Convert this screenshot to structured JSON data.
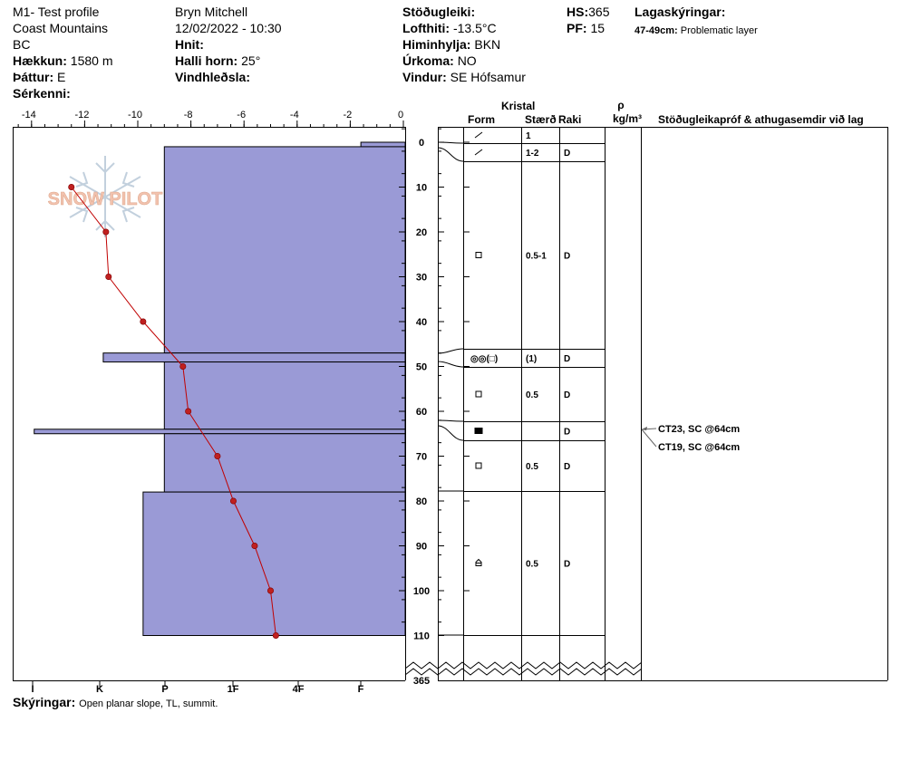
{
  "header": {
    "profile_name": "M1- Test profile",
    "range": "Coast Mountains",
    "region": "BC",
    "elevation_label": "Hækkun:",
    "elevation_value": "1580 m",
    "aspect_label": "Þáttur:",
    "aspect_value": "E",
    "specifics_label": "Sérkenni:",
    "observer": "Bryn Mitchell",
    "datetime": "12/02/2022 - 10:30",
    "location_label": "Hnit:",
    "slope_label": "Halli horn:",
    "slope_value": "25°",
    "wind_loading_label": "Vindhleðsla:",
    "stability_label": "Stöðugleiki:",
    "air_temp_label": "Lofthiti:",
    "air_temp_value": "-13.5°C",
    "sky_label": "Himinhylja:",
    "sky_value": "BKN",
    "precip_label": "Úrkoma:",
    "precip_value": "NO",
    "wind_label": "Vindur:",
    "wind_value": "SE Hófsamur",
    "hs_label": "HS:",
    "hs_value": "365",
    "pf_label": "PF:",
    "pf_value": "15",
    "layer_notes_label": "Lagaskýringar:",
    "layer_note_range": "47-49cm:",
    "layer_note_text": "Problematic layer",
    "notes_label": "Skýringar:",
    "notes_value": "Open planar slope, TL, summit."
  },
  "table_headers": {
    "crystal": "Kristal",
    "form": "Form",
    "size": "Stærð",
    "moisture": "Raki",
    "density_symbol": "ρ",
    "density_unit": "kg/m³",
    "tests": "Stöðugleikapróf & athugasemdir við lag"
  },
  "logo": {
    "text": "SNOW PILOT"
  },
  "colors": {
    "hardness_fill": "#9a9ad6",
    "hardness_stroke": "#000000",
    "temp_line": "#c00000",
    "temp_point": "#c02020",
    "logo": "#f0b8a0",
    "logo_flake": "#b8c8d8"
  },
  "chart_data": {
    "type": "snow-profile",
    "temp_axis": {
      "ticks": [
        -14,
        -12,
        -10,
        -8,
        -6,
        -4,
        -2,
        0
      ],
      "range": [
        -14.5,
        0
      ]
    },
    "hardness_axis": {
      "ticks": [
        "I",
        "K",
        "P",
        "1F",
        "4F",
        "F"
      ]
    },
    "depth_axis": {
      "ticks": [
        0,
        10,
        20,
        30,
        40,
        50,
        60,
        70,
        80,
        90,
        100,
        110
      ],
      "bottom_label": "365",
      "range": [
        -3,
        110
      ]
    },
    "temperature_profile": [
      {
        "depth": 10,
        "temp": -12.5
      },
      {
        "depth": 20,
        "temp": -11.2
      },
      {
        "depth": 30,
        "temp": -11.1
      },
      {
        "depth": 40,
        "temp": -9.8
      },
      {
        "depth": 50,
        "temp": -8.3
      },
      {
        "depth": 60,
        "temp": -8.1
      },
      {
        "depth": 70,
        "temp": -7.0
      },
      {
        "depth": 80,
        "temp": -6.4
      },
      {
        "depth": 90,
        "temp": -5.6
      },
      {
        "depth": 100,
        "temp": -5.0
      },
      {
        "depth": 110,
        "temp": -4.8
      }
    ],
    "hardness_layers": [
      {
        "top": -1,
        "bottom": 1,
        "hardness_temp": -1.6
      },
      {
        "top": 1,
        "bottom": 47,
        "hardness_temp": -9.0
      },
      {
        "top": 47,
        "bottom": 49,
        "hardness_temp": -11.3
      },
      {
        "top": 49,
        "bottom": 64,
        "hardness_temp": -9.0
      },
      {
        "top": 64,
        "bottom": 65,
        "hardness_temp": -13.9
      },
      {
        "top": 65,
        "bottom": 78,
        "hardness_temp": -9.0
      },
      {
        "top": 78,
        "bottom": 110,
        "hardness_temp": -9.8
      }
    ],
    "layers": [
      {
        "form": "precip",
        "size": "1",
        "moisture": ""
      },
      {
        "form": "precip",
        "size": "1-2",
        "moisture": "D"
      },
      {
        "form": "faceted",
        "size": "0.5-1",
        "moisture": "D"
      },
      {
        "form": "surface-hoar-faceted",
        "form_text": "◎◎(□)",
        "size": "(1)",
        "moisture": "D"
      },
      {
        "form": "faceted",
        "size": "0.5",
        "moisture": "D"
      },
      {
        "form": "faceted-filled",
        "size": "",
        "moisture": "D"
      },
      {
        "form": "faceted",
        "size": "0.5",
        "moisture": "D"
      },
      {
        "form": "depth-hoar",
        "size": "0.5",
        "moisture": "D"
      }
    ],
    "stability_tests": [
      {
        "text": "CT23, SC @64cm"
      },
      {
        "text": "CT19, SC @64cm"
      }
    ]
  }
}
